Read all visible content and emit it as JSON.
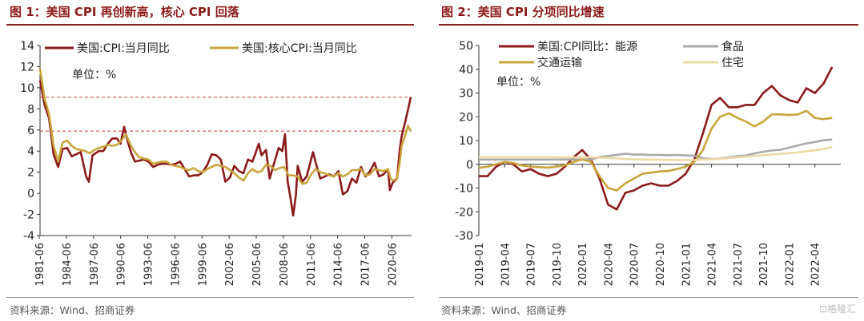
{
  "panels": [
    {
      "title": "图 1：美国 CPI 再创新高，核心 CPI 回落",
      "source": "资料来源：Wind、招商证券"
    },
    {
      "title": "图 2：美国 CPI 分项同比增速",
      "source": "资料来源：Wind、招商证券"
    }
  ],
  "watermark": "⊡格隆汇",
  "colors": {
    "title": "#8B1A1A",
    "red": "#8B1A1A",
    "gold": "#C9A43A",
    "gray": "#AAAAAA",
    "cream": "#EDD9A3",
    "dashed": "#C0392B"
  },
  "chart_data": [
    {
      "type": "line",
      "unit_note": "单位：%",
      "ylim": [
        -4,
        14
      ],
      "yticks": [
        -4,
        -2,
        0,
        2,
        4,
        6,
        8,
        10,
        12,
        14
      ],
      "xrange": [
        1981.5,
        2022.6
      ],
      "xticks": [
        {
          "pos": 1981.42,
          "label": "1981-06"
        },
        {
          "pos": 1984.42,
          "label": "1984-06"
        },
        {
          "pos": 1987.42,
          "label": "1987-06"
        },
        {
          "pos": 1990.42,
          "label": "1990-06"
        },
        {
          "pos": 1993.42,
          "label": "1993-06"
        },
        {
          "pos": 1996.42,
          "label": "1996-06"
        },
        {
          "pos": 1999.42,
          "label": "1999-06"
        },
        {
          "pos": 2002.42,
          "label": "2002-06"
        },
        {
          "pos": 2005.42,
          "label": "2005-06"
        },
        {
          "pos": 2008.42,
          "label": "2008-06"
        },
        {
          "pos": 2011.42,
          "label": "2011-06"
        },
        {
          "pos": 2014.42,
          "label": "2014-06"
        },
        {
          "pos": 2017.42,
          "label": "2017-06"
        },
        {
          "pos": 2020.42,
          "label": "2020-06"
        }
      ],
      "reference_lines": [
        9.1,
        5.9
      ],
      "legend": "top",
      "series": [
        {
          "name": "美国:CPI:当月同比",
          "color": "#8B1A1A",
          "points": [
            [
              1981.5,
              10.7
            ],
            [
              1982.0,
              8.4
            ],
            [
              1982.5,
              7.1
            ],
            [
              1983.0,
              3.7
            ],
            [
              1983.5,
              2.5
            ],
            [
              1984.0,
              4.2
            ],
            [
              1984.5,
              4.3
            ],
            [
              1985.0,
              3.5
            ],
            [
              1985.5,
              3.7
            ],
            [
              1986.0,
              3.9
            ],
            [
              1986.6,
              1.6
            ],
            [
              1986.9,
              1.1
            ],
            [
              1987.3,
              3.6
            ],
            [
              1988.0,
              4.0
            ],
            [
              1988.5,
              4.0
            ],
            [
              1989.0,
              4.7
            ],
            [
              1989.5,
              5.2
            ],
            [
              1990.0,
              5.2
            ],
            [
              1990.4,
              4.7
            ],
            [
              1990.8,
              6.3
            ],
            [
              1991.2,
              4.9
            ],
            [
              1991.6,
              3.8
            ],
            [
              1992.0,
              3.0
            ],
            [
              1992.5,
              3.1
            ],
            [
              1993.0,
              3.2
            ],
            [
              1993.5,
              3.0
            ],
            [
              1994.0,
              2.5
            ],
            [
              1994.5,
              2.7
            ],
            [
              1995.0,
              2.8
            ],
            [
              1995.5,
              2.8
            ],
            [
              1996.0,
              2.7
            ],
            [
              1996.5,
              2.8
            ],
            [
              1997.0,
              3.0
            ],
            [
              1997.5,
              2.3
            ],
            [
              1998.0,
              1.6
            ],
            [
              1998.5,
              1.7
            ],
            [
              1999.0,
              1.7
            ],
            [
              1999.5,
              2.0
            ],
            [
              2000.0,
              2.7
            ],
            [
              2000.5,
              3.7
            ],
            [
              2001.0,
              3.6
            ],
            [
              2001.5,
              3.2
            ],
            [
              2002.0,
              1.1
            ],
            [
              2002.5,
              1.5
            ],
            [
              2003.0,
              2.6
            ],
            [
              2003.5,
              2.1
            ],
            [
              2004.0,
              1.9
            ],
            [
              2004.5,
              3.2
            ],
            [
              2005.0,
              3.0
            ],
            [
              2005.7,
              4.7
            ],
            [
              2006.0,
              3.6
            ],
            [
              2006.5,
              4.1
            ],
            [
              2006.9,
              1.4
            ],
            [
              2007.3,
              2.6
            ],
            [
              2007.9,
              4.3
            ],
            [
              2008.3,
              4.0
            ],
            [
              2008.6,
              5.6
            ],
            [
              2008.9,
              1.1
            ],
            [
              2009.2,
              -0.4
            ],
            [
              2009.5,
              -2.1
            ],
            [
              2009.8,
              -0.2
            ],
            [
              2010.0,
              2.6
            ],
            [
              2010.5,
              1.1
            ],
            [
              2011.0,
              1.6
            ],
            [
              2011.7,
              3.9
            ],
            [
              2012.0,
              2.9
            ],
            [
              2012.5,
              1.4
            ],
            [
              2013.0,
              1.6
            ],
            [
              2013.5,
              1.8
            ],
            [
              2014.0,
              1.6
            ],
            [
              2014.5,
              2.1
            ],
            [
              2015.0,
              -0.1
            ],
            [
              2015.5,
              0.2
            ],
            [
              2016.0,
              1.4
            ],
            [
              2016.5,
              1.0
            ],
            [
              2017.0,
              2.5
            ],
            [
              2017.5,
              1.6
            ],
            [
              2018.0,
              2.1
            ],
            [
              2018.5,
              2.9
            ],
            [
              2019.0,
              1.6
            ],
            [
              2019.5,
              1.8
            ],
            [
              2020.0,
              2.3
            ],
            [
              2020.2,
              0.3
            ],
            [
              2020.5,
              1.0
            ],
            [
              2021.0,
              1.4
            ],
            [
              2021.3,
              4.2
            ],
            [
              2021.5,
              5.4
            ],
            [
              2021.9,
              6.8
            ],
            [
              2022.2,
              7.9
            ],
            [
              2022.5,
              9.1
            ]
          ]
        },
        {
          "name": "美国:核心CPI:当月同比",
          "color": "#C9A43A",
          "points": [
            [
              1981.5,
              11.8
            ],
            [
              1982.0,
              9.0
            ],
            [
              1982.5,
              7.5
            ],
            [
              1983.0,
              4.5
            ],
            [
              1983.5,
              3.0
            ],
            [
              1984.0,
              4.8
            ],
            [
              1984.5,
              5.0
            ],
            [
              1985.0,
              4.5
            ],
            [
              1985.5,
              4.2
            ],
            [
              1986.0,
              4.1
            ],
            [
              1986.5,
              4.0
            ],
            [
              1987.0,
              3.8
            ],
            [
              1987.5,
              4.1
            ],
            [
              1988.0,
              4.3
            ],
            [
              1988.5,
              4.4
            ],
            [
              1989.0,
              4.6
            ],
            [
              1989.5,
              4.5
            ],
            [
              1990.0,
              4.6
            ],
            [
              1990.5,
              5.0
            ],
            [
              1991.0,
              5.6
            ],
            [
              1991.5,
              4.6
            ],
            [
              1992.0,
              3.9
            ],
            [
              1992.5,
              3.4
            ],
            [
              1993.0,
              3.3
            ],
            [
              1993.5,
              3.2
            ],
            [
              1994.0,
              2.8
            ],
            [
              1994.5,
              2.9
            ],
            [
              1995.0,
              3.0
            ],
            [
              1995.5,
              3.0
            ],
            [
              1996.0,
              2.7
            ],
            [
              1996.5,
              2.6
            ],
            [
              1997.0,
              2.5
            ],
            [
              1997.5,
              2.3
            ],
            [
              1998.0,
              2.2
            ],
            [
              1998.5,
              2.4
            ],
            [
              1999.0,
              2.1
            ],
            [
              1999.5,
              2.0
            ],
            [
              2000.0,
              2.3
            ],
            [
              2000.5,
              2.5
            ],
            [
              2001.0,
              2.7
            ],
            [
              2001.5,
              2.6
            ],
            [
              2002.0,
              2.5
            ],
            [
              2002.5,
              2.2
            ],
            [
              2003.0,
              1.9
            ],
            [
              2003.5,
              1.5
            ],
            [
              2004.0,
              1.2
            ],
            [
              2004.5,
              1.9
            ],
            [
              2005.0,
              2.3
            ],
            [
              2005.5,
              2.0
            ],
            [
              2006.0,
              2.1
            ],
            [
              2006.5,
              2.7
            ],
            [
              2007.0,
              2.6
            ],
            [
              2007.5,
              2.2
            ],
            [
              2008.0,
              2.4
            ],
            [
              2008.5,
              2.5
            ],
            [
              2009.0,
              1.7
            ],
            [
              2009.5,
              1.7
            ],
            [
              2010.0,
              1.6
            ],
            [
              2010.5,
              0.9
            ],
            [
              2011.0,
              1.0
            ],
            [
              2011.5,
              1.8
            ],
            [
              2012.0,
              2.3
            ],
            [
              2012.5,
              2.0
            ],
            [
              2013.0,
              1.9
            ],
            [
              2013.5,
              1.7
            ],
            [
              2014.0,
              1.6
            ],
            [
              2014.5,
              1.9
            ],
            [
              2015.0,
              1.6
            ],
            [
              2015.5,
              1.8
            ],
            [
              2016.0,
              2.2
            ],
            [
              2016.5,
              2.2
            ],
            [
              2017.0,
              2.3
            ],
            [
              2017.5,
              1.7
            ],
            [
              2018.0,
              1.8
            ],
            [
              2018.5,
              2.3
            ],
            [
              2019.0,
              2.2
            ],
            [
              2019.5,
              2.1
            ],
            [
              2020.0,
              2.3
            ],
            [
              2020.3,
              1.4
            ],
            [
              2020.5,
              1.2
            ],
            [
              2021.0,
              1.4
            ],
            [
              2021.3,
              3.0
            ],
            [
              2021.5,
              4.5
            ],
            [
              2021.9,
              5.5
            ],
            [
              2022.2,
              6.4
            ],
            [
              2022.5,
              5.9
            ]
          ]
        }
      ]
    },
    {
      "type": "line",
      "unit_note": "单位：%",
      "ylim": [
        -30,
        50
      ],
      "yticks": [
        -30,
        -20,
        -10,
        0,
        10,
        20,
        30,
        40,
        50
      ],
      "xrange": [
        0,
        42
      ],
      "xticks": [
        {
          "pos": 0,
          "label": "2019-01"
        },
        {
          "pos": 3,
          "label": "2019-04"
        },
        {
          "pos": 6,
          "label": "2019-07"
        },
        {
          "pos": 9,
          "label": "2019-10"
        },
        {
          "pos": 12,
          "label": "2020-01"
        },
        {
          "pos": 15,
          "label": "2020-04"
        },
        {
          "pos": 18,
          "label": "2020-07"
        },
        {
          "pos": 21,
          "label": "2020-10"
        },
        {
          "pos": 24,
          "label": "2021-01"
        },
        {
          "pos": 27,
          "label": "2021-04"
        },
        {
          "pos": 30,
          "label": "2021-07"
        },
        {
          "pos": 33,
          "label": "2021-10"
        },
        {
          "pos": 36,
          "label": "2022-01"
        },
        {
          "pos": 39,
          "label": "2022-04"
        }
      ],
      "legend": "top",
      "series": [
        {
          "name": "美国:CPI同比：能源",
          "color": "#8B1A1A",
          "values": [
            -5,
            -5,
            -1,
            1,
            0,
            -3,
            -2,
            -4,
            -5,
            -4,
            -1,
            3,
            6,
            2,
            -6,
            -17,
            -19,
            -12,
            -11,
            -9,
            -8,
            -9,
            -9,
            -7,
            -4,
            2,
            13,
            25,
            28,
            24,
            24,
            25,
            25,
            30,
            33,
            29,
            27,
            26,
            32,
            30,
            34,
            41
          ]
        },
        {
          "name": "食品",
          "color": "#AAAAAA",
          "values": [
            2,
            2,
            2,
            2,
            2,
            2,
            2,
            2,
            2,
            2,
            2,
            2,
            2,
            2,
            3,
            3.5,
            4,
            4.5,
            4.1,
            4.1,
            3.9,
            3.9,
            3.8,
            3.9,
            3.7,
            3.6,
            2.5,
            2.2,
            2.4,
            2.9,
            3.4,
            3.7,
            4.6,
            5.3,
            5.8,
            6.1,
            7,
            7.9,
            8.8,
            9.4,
            10.1,
            10.4
          ]
        },
        {
          "name": "交通运输",
          "color": "#C9A43A",
          "values": [
            -1.5,
            -1,
            0,
            1,
            0.5,
            -0.5,
            -1,
            -1.2,
            -1.4,
            -1,
            -0.5,
            1,
            2,
            1,
            -5,
            -10,
            -11,
            -8,
            -6,
            -4,
            -3.5,
            -3,
            -2.8,
            -2,
            -1,
            1,
            6,
            15,
            20,
            21.5,
            19.5,
            18,
            16,
            18,
            21,
            21,
            20.8,
            21,
            22.5,
            19.5,
            19,
            19.5
          ]
        },
        {
          "name": "住宅",
          "color": "#EDD9A3",
          "values": [
            3,
            3,
            3,
            3,
            3,
            3,
            3,
            3,
            3,
            3,
            2.9,
            2.9,
            3,
            3,
            2.8,
            2.7,
            2.5,
            2.3,
            2.1,
            2,
            2,
            1.9,
            1.8,
            1.8,
            1.8,
            1.8,
            2,
            2.1,
            2.3,
            2.6,
            2.9,
            3.2,
            3.5,
            3.8,
            4.1,
            4.4,
            4.7,
            5,
            5.5,
            5.9,
            6.4,
            7.2
          ]
        }
      ]
    }
  ]
}
